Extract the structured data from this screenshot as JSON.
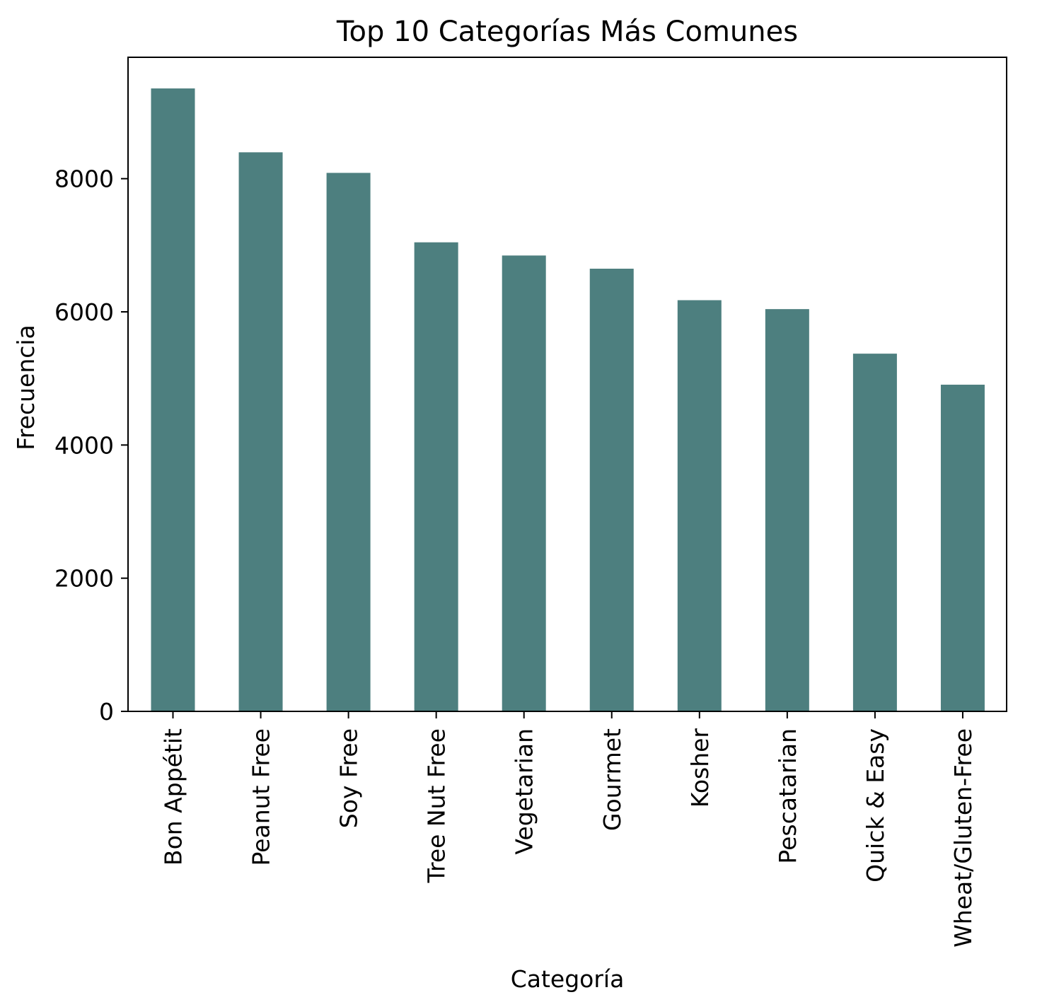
{
  "chart_data": {
    "type": "bar",
    "title": "Top 10 Categorías Más Comunes",
    "xlabel": "Categoría",
    "ylabel": "Frecuencia",
    "categories": [
      "Bon Appétit",
      "Peanut Free",
      "Soy Free",
      "Tree Nut Free",
      "Vegetarian",
      "Gourmet",
      "Kosher",
      "Pescatarian",
      "Quick & Easy",
      "Wheat/Gluten-Free"
    ],
    "values": [
      9355,
      8396,
      8087,
      7044,
      6846,
      6648,
      6175,
      6041,
      5372,
      4906
    ],
    "ylim": [
      0,
      9823
    ],
    "yticks": [
      0,
      2000,
      4000,
      6000,
      8000
    ],
    "bar_color": "#4d7f7f",
    "grid": false,
    "legend": "none"
  }
}
